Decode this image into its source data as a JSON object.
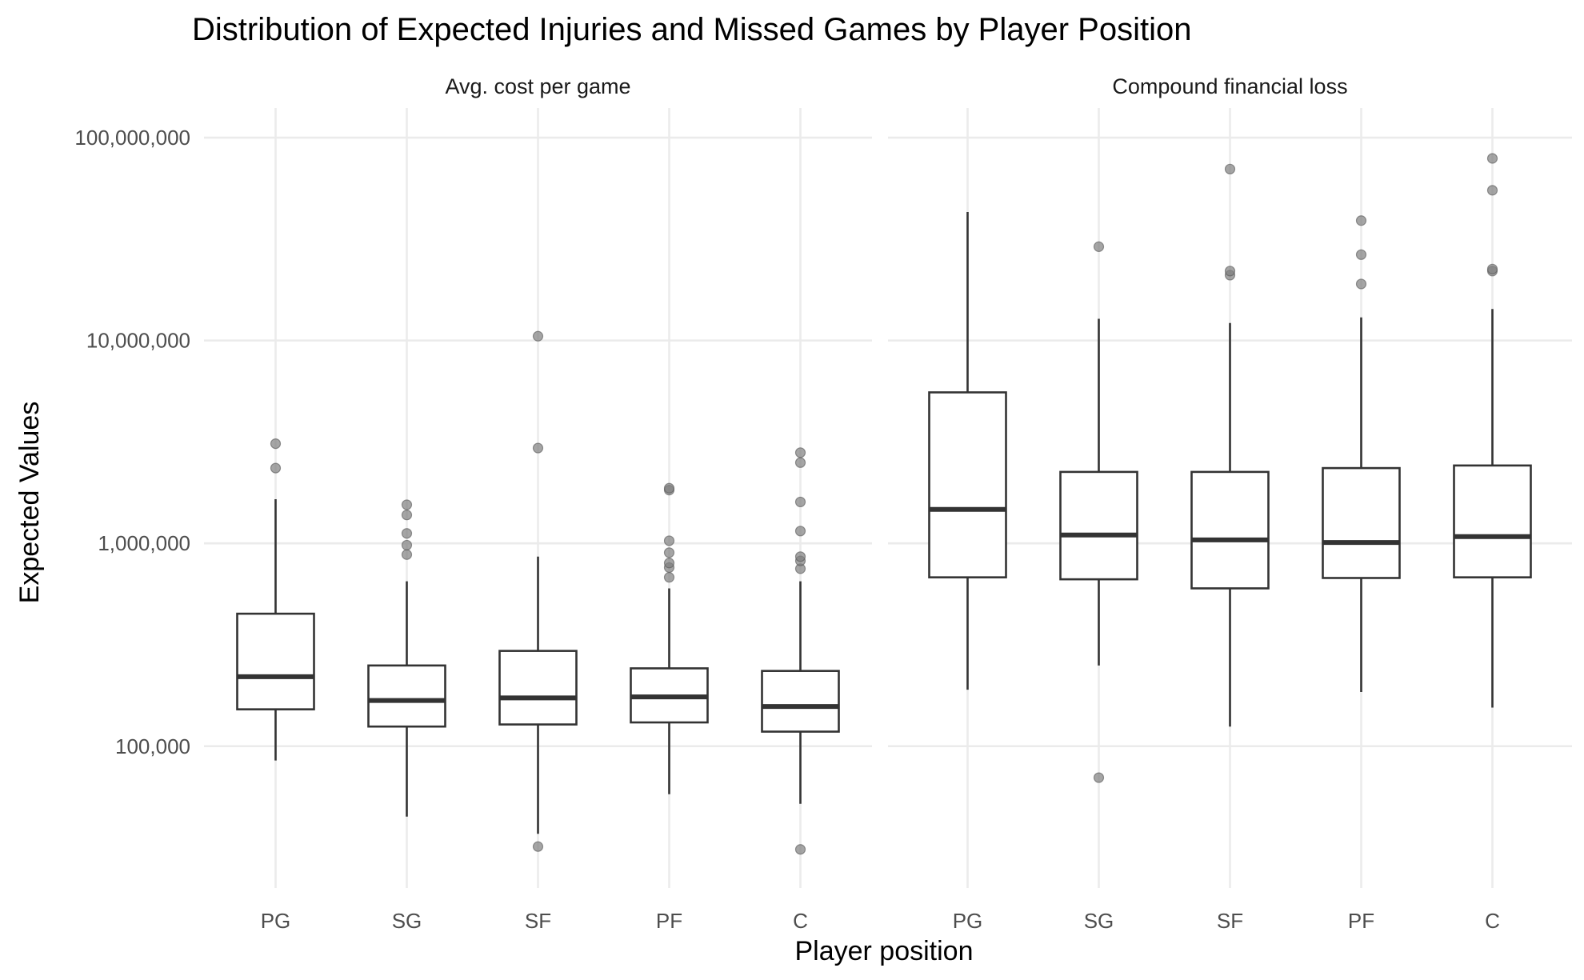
{
  "chart_data": {
    "type": "boxplot",
    "title": "Distribution of Expected Injuries and Missed Games by Player Position",
    "xlabel": "Player position",
    "ylabel": "Expected Values",
    "y_scale": "log10",
    "ylim": [
      20000,
      140000000
    ],
    "y_ticks": [
      {
        "value": 100000,
        "label": "100,000"
      },
      {
        "value": 1000000,
        "label": "1,000,000"
      },
      {
        "value": 10000000,
        "label": "10,000,000"
      },
      {
        "value": 100000000,
        "label": "100,000,000"
      }
    ],
    "categories": [
      "PG",
      "SG",
      "SF",
      "PF",
      "C"
    ],
    "grid": true,
    "colors": {
      "box": "#333333",
      "outlier": "#7f7f7f",
      "grid": "#ebebeb"
    },
    "facets": [
      {
        "name": "Avg. cost per game",
        "boxes": [
          {
            "category": "PG",
            "whisker_low": 85000,
            "q1": 152000,
            "median": 220000,
            "q3": 450000,
            "whisker_high": 1650000,
            "outliers": [
              2350000,
              3100000
            ]
          },
          {
            "category": "SG",
            "whisker_low": 45000,
            "q1": 125000,
            "median": 168000,
            "q3": 250000,
            "whisker_high": 650000,
            "outliers": [
              880000,
              980000,
              1120000,
              1380000,
              1550000
            ]
          },
          {
            "category": "SF",
            "whisker_low": 37000,
            "q1": 128000,
            "median": 173000,
            "q3": 295000,
            "whisker_high": 860000,
            "outliers": [
              2950000,
              10500000,
              32000
            ]
          },
          {
            "category": "PF",
            "whisker_low": 58000,
            "q1": 131000,
            "median": 175000,
            "q3": 242000,
            "whisker_high": 600000,
            "outliers": [
              680000,
              760000,
              800000,
              900000,
              1030000,
              1830000,
              1870000
            ]
          },
          {
            "category": "C",
            "whisker_low": 52000,
            "q1": 118000,
            "median": 157000,
            "q3": 235000,
            "whisker_high": 650000,
            "outliers": [
              750000,
              820000,
              860000,
              1150000,
              1600000,
              2500000,
              2800000,
              31000
            ]
          }
        ]
      },
      {
        "name": "Compound financial loss",
        "boxes": [
          {
            "category": "PG",
            "whisker_low": 190000,
            "q1": 680000,
            "median": 1470000,
            "q3": 5550000,
            "whisker_high": 43000000,
            "outliers": []
          },
          {
            "category": "SG",
            "whisker_low": 250000,
            "q1": 665000,
            "median": 1100000,
            "q3": 2250000,
            "whisker_high": 12800000,
            "outliers": [
              29000000,
              70000
            ]
          },
          {
            "category": "SF",
            "whisker_low": 125000,
            "q1": 600000,
            "median": 1040000,
            "q3": 2250000,
            "whisker_high": 12200000,
            "outliers": [
              21000000,
              22000000,
              70000000
            ]
          },
          {
            "category": "PF",
            "whisker_low": 185000,
            "q1": 675000,
            "median": 1010000,
            "q3": 2350000,
            "whisker_high": 13000000,
            "outliers": [
              19000000,
              26500000,
              39000000
            ]
          },
          {
            "category": "C",
            "whisker_low": 155000,
            "q1": 680000,
            "median": 1080000,
            "q3": 2420000,
            "whisker_high": 14300000,
            "outliers": [
              22000000,
              22500000,
              55000000,
              79000000
            ]
          }
        ]
      }
    ]
  }
}
